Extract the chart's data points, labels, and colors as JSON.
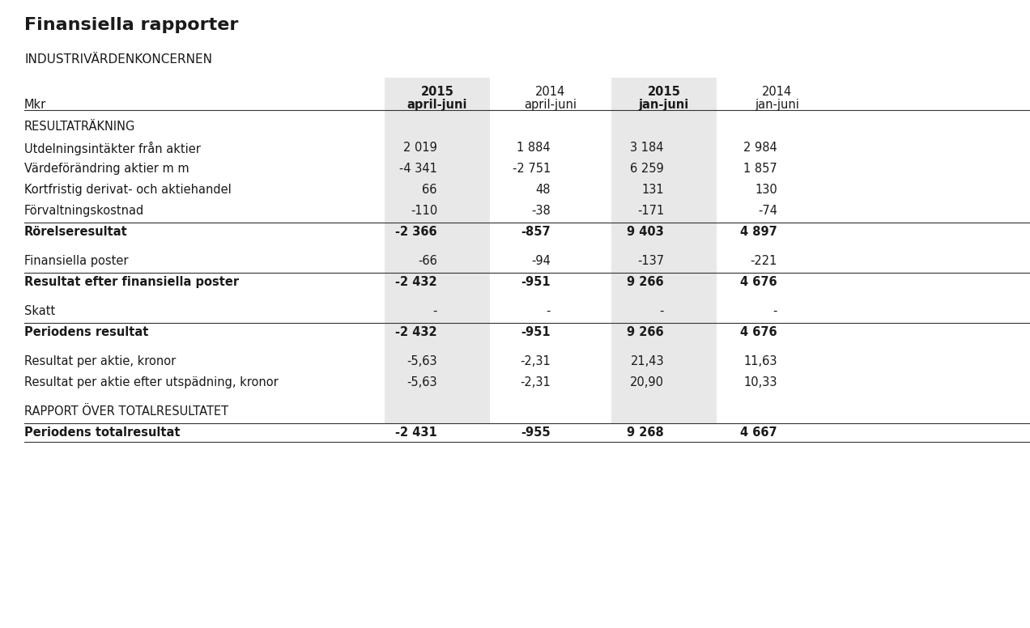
{
  "title": "Finansiella rapporter",
  "subtitle": "INDUSTRIVÄRDENKONCERNEN",
  "col_label": "Mkr",
  "col_headers_line1": [
    "2015",
    "2014",
    "2015",
    "2014"
  ],
  "col_headers_line2": [
    "april-juni",
    "april-juni",
    "jan-juni",
    "jan-juni"
  ],
  "col_headers_bold": [
    true,
    false,
    true,
    false
  ],
  "rows": [
    {
      "label": "RESULTATRÄKNING",
      "values": [
        "",
        "",
        "",
        ""
      ],
      "style": "section",
      "bold": false
    },
    {
      "label": "Utdelningsintäkter från aktier",
      "values": [
        "2 019",
        "1 884",
        "3 184",
        "2 984"
      ],
      "style": "normal",
      "bold": false
    },
    {
      "label": "Värdeförändring aktier m m",
      "values": [
        "-4 341",
        "-2 751",
        "6 259",
        "1 857"
      ],
      "style": "normal",
      "bold": false
    },
    {
      "label": "Kortfristig derivat- och aktiehandel",
      "values": [
        "66",
        "48",
        "131",
        "130"
      ],
      "style": "normal",
      "bold": false
    },
    {
      "label": "Förvaltningskostnad",
      "values": [
        "-110",
        "-38",
        "-171",
        "-74"
      ],
      "style": "normal",
      "bold": false
    },
    {
      "label": "Rörelseresultat",
      "values": [
        "-2 366",
        "-857",
        "9 403",
        "4 897"
      ],
      "style": "bold_line",
      "bold": true
    },
    {
      "label": "",
      "values": [
        "",
        "",
        "",
        ""
      ],
      "style": "spacer",
      "bold": false
    },
    {
      "label": "Finansiella poster",
      "values": [
        "-66",
        "-94",
        "-137",
        "-221"
      ],
      "style": "normal",
      "bold": false
    },
    {
      "label": "Resultat efter finansiella poster",
      "values": [
        "-2 432",
        "-951",
        "9 266",
        "4 676"
      ],
      "style": "bold_line",
      "bold": true
    },
    {
      "label": "",
      "values": [
        "",
        "",
        "",
        ""
      ],
      "style": "spacer",
      "bold": false
    },
    {
      "label": "Skatt",
      "values": [
        "-",
        "-",
        "-",
        "-"
      ],
      "style": "normal",
      "bold": false
    },
    {
      "label": "Periodens resultat",
      "values": [
        "-2 432",
        "-951",
        "9 266",
        "4 676"
      ],
      "style": "bold_line",
      "bold": true
    },
    {
      "label": "",
      "values": [
        "",
        "",
        "",
        ""
      ],
      "style": "spacer",
      "bold": false
    },
    {
      "label": "Resultat per aktie, kronor",
      "values": [
        "-5,63",
        "-2,31",
        "21,43",
        "11,63"
      ],
      "style": "normal",
      "bold": false
    },
    {
      "label": "Resultat per aktie efter utspädning, kronor",
      "values": [
        "-5,63",
        "-2,31",
        "20,90",
        "10,33"
      ],
      "style": "normal",
      "bold": false
    },
    {
      "label": "",
      "values": [
        "",
        "",
        "",
        ""
      ],
      "style": "spacer",
      "bold": false
    },
    {
      "label": "RAPPORT ÖVER TOTALRESULTATET",
      "values": [
        "",
        "",
        "",
        ""
      ],
      "style": "section",
      "bold": false
    },
    {
      "label": "Periodens totalresultat",
      "values": [
        "-2 431",
        "-955",
        "9 268",
        "4 667"
      ],
      "style": "bold_line_bottom",
      "bold": true
    }
  ],
  "bg_color": "#ffffff",
  "shaded_cols": [
    0,
    2
  ],
  "shade_color": "#e8e8e8",
  "text_color": "#1a1a1a",
  "line_color": "#333333",
  "font_size": 10.5,
  "header_font_size": 10.5
}
